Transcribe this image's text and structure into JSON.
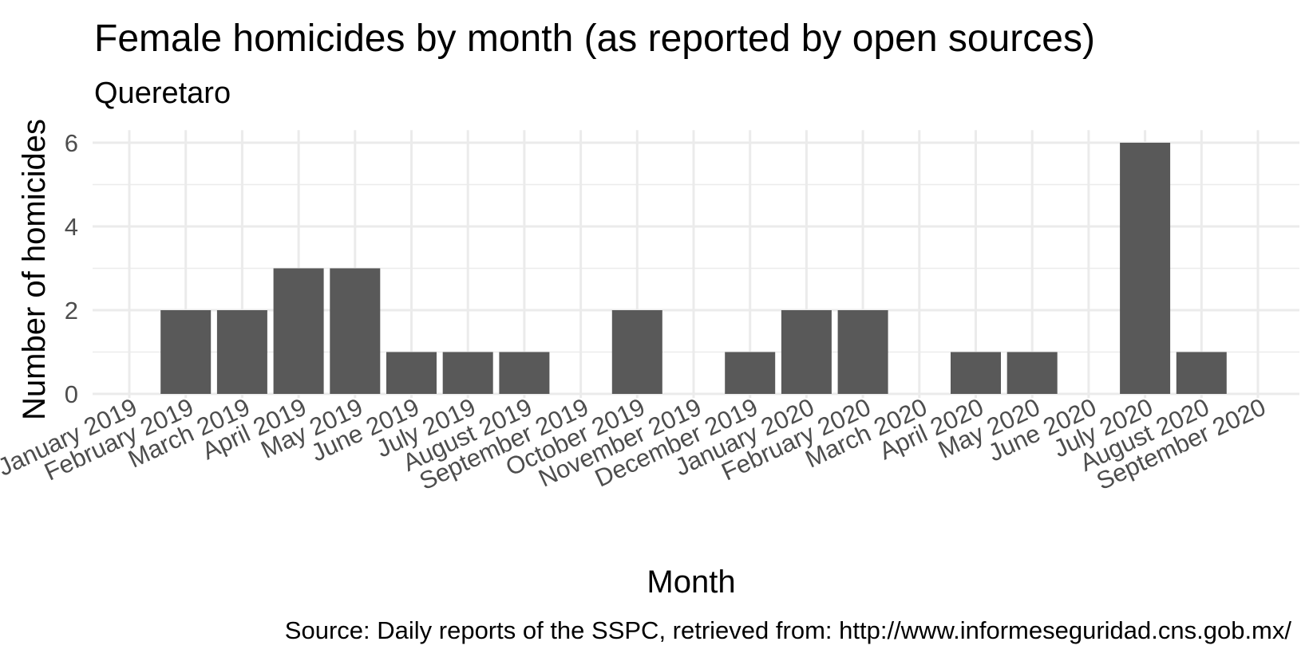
{
  "chart_data": {
    "type": "bar",
    "title": "Female homicides by month (as reported by open sources)",
    "subtitle": "Queretaro",
    "xlabel": "Month",
    "ylabel": "Number of homicides",
    "caption": "Source: Daily reports of the SSPC, retrieved from: http://www.informeseguridad.cns.gob.mx/",
    "categories": [
      "January 2019",
      "February 2019",
      "March 2019",
      "April 2019",
      "May 2019",
      "June 2019",
      "July 2019",
      "August 2019",
      "September 2019",
      "October 2019",
      "November 2019",
      "December 2019",
      "January 2020",
      "February 2020",
      "March 2020",
      "April 2020",
      "May 2020",
      "June 2020",
      "July 2020",
      "August 2020",
      "September 2020"
    ],
    "values": [
      0,
      2,
      2,
      3,
      3,
      1,
      1,
      1,
      0,
      2,
      0,
      1,
      2,
      2,
      0,
      1,
      1,
      0,
      6,
      1,
      0
    ],
    "ylim": [
      0,
      6.3
    ],
    "yticks": [
      "0",
      "2",
      "4",
      "6"
    ],
    "grid": true,
    "legend": "none",
    "bar_color": "#595959",
    "grid_color": "#ebebeb"
  }
}
